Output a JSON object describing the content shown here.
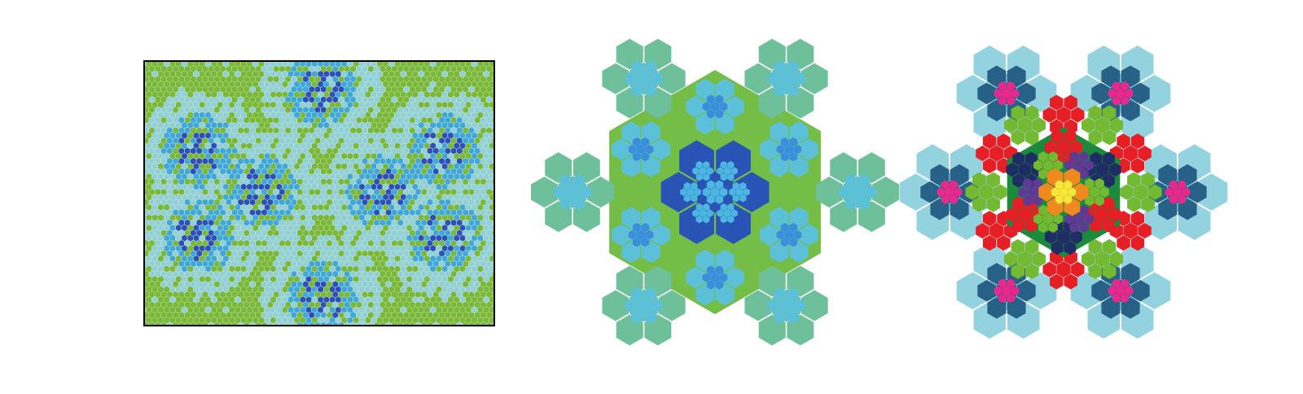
{
  "figure": {
    "panels": [
      {
        "kind": "periodic-tiling-patch",
        "colors": {
          "background": "#7ab83c",
          "light_cell": "#8fd0dc",
          "mid_cell": "#3fa7df",
          "dark_cell": "#2c4fc0",
          "edge": "#d8e8b0",
          "frame": "#000000"
        }
      },
      {
        "kind": "snowflake-cluster",
        "colors": {
          "outer": "#6ec09a",
          "fill": "#74bd46",
          "light_cell": "#5cc0d8",
          "mid_cell": "#3b8fd8",
          "core": "#2a53b6",
          "core_detail": "#4bb6e0"
        }
      },
      {
        "kind": "colored-snowflake-cluster",
        "colors": {
          "ring_outer": "#93d3df",
          "ring_teal": "#276187",
          "flower": "#e8288a",
          "lime": "#74b932",
          "green": "#1a8a3c",
          "red": "#e61e25",
          "navy": "#1e2d63",
          "purple": "#5e3a94",
          "orange": "#f08a1e",
          "yellow": "#f4e83a"
        }
      }
    ]
  }
}
